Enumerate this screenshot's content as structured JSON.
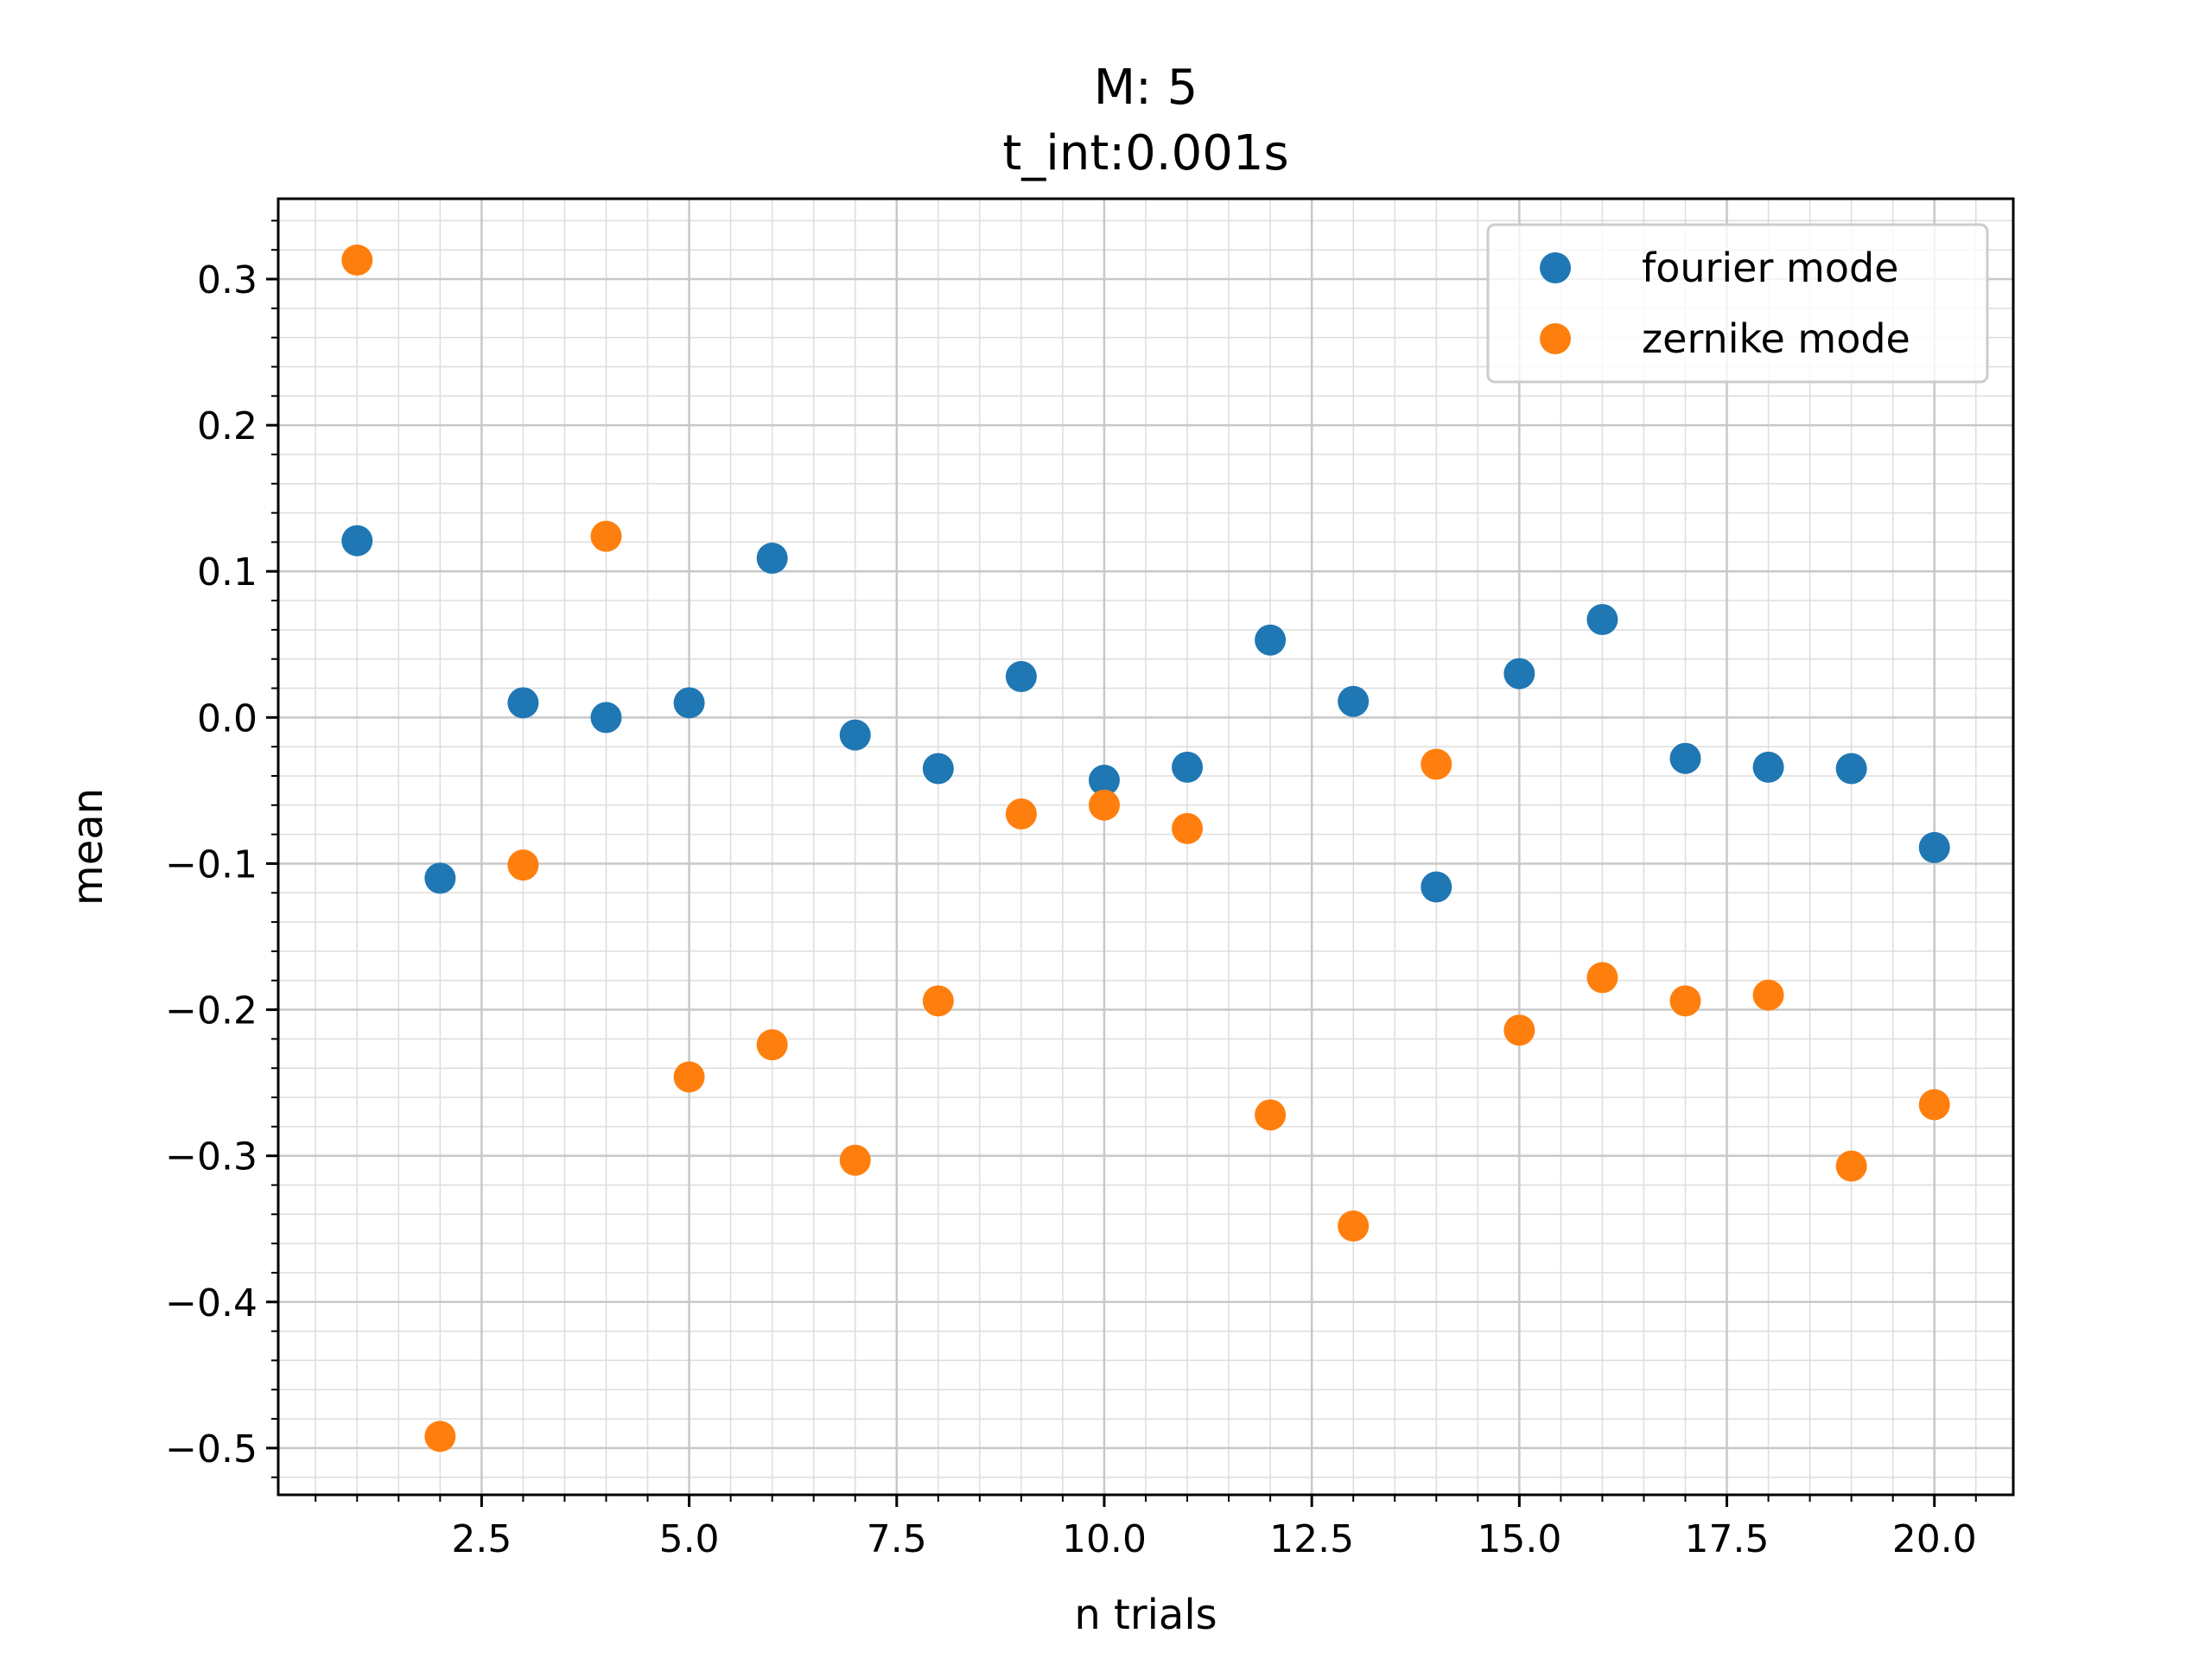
{
  "chart_data": {
    "type": "scatter",
    "title_lines": [
      "M: 5",
      "t_int:0.001s"
    ],
    "xlabel": "n trials",
    "ylabel": "mean",
    "xlim": [
      0.05,
      20.95
    ],
    "ylim": [
      -0.532,
      0.355
    ],
    "xticks": [
      2.5,
      5.0,
      7.5,
      10.0,
      12.5,
      15.0,
      17.5,
      20.0
    ],
    "xtick_labels": [
      "2.5",
      "5.0",
      "7.5",
      "10.0",
      "12.5",
      "15.0",
      "17.5",
      "20.0"
    ],
    "xminor_step": 0.5,
    "yticks": [
      -0.5,
      -0.4,
      -0.3,
      -0.2,
      -0.1,
      0.0,
      0.1,
      0.2,
      0.3
    ],
    "ytick_labels": [
      "−0.5",
      "−0.4",
      "−0.3",
      "−0.2",
      "−0.1",
      "0.0",
      "0.1",
      "0.2",
      "0.3"
    ],
    "yminor_step": 0.02,
    "grid": true,
    "legend_position": "top-right",
    "series": [
      {
        "name": "fourier mode",
        "color": "#1f77b4",
        "x": [
          1,
          2,
          3,
          4,
          5,
          6,
          7,
          8,
          9,
          10,
          11,
          12,
          13,
          14,
          15,
          16,
          17,
          18,
          19,
          20
        ],
        "y": [
          0.121,
          -0.11,
          0.01,
          0.0,
          0.01,
          0.109,
          -0.012,
          -0.035,
          0.028,
          -0.043,
          -0.034,
          0.053,
          0.011,
          -0.116,
          0.03,
          0.067,
          -0.028,
          -0.034,
          -0.035,
          -0.089
        ]
      },
      {
        "name": "zernike mode",
        "color": "#ff7f0e",
        "x": [
          1,
          2,
          3,
          4,
          5,
          6,
          7,
          8,
          9,
          10,
          11,
          12,
          13,
          14,
          15,
          16,
          17,
          18,
          19,
          20
        ],
        "y": [
          0.313,
          -0.492,
          -0.101,
          0.124,
          -0.246,
          -0.224,
          -0.303,
          -0.194,
          -0.066,
          -0.06,
          -0.076,
          -0.272,
          -0.348,
          -0.032,
          -0.214,
          -0.178,
          -0.194,
          -0.19,
          -0.307,
          -0.265
        ]
      }
    ]
  }
}
